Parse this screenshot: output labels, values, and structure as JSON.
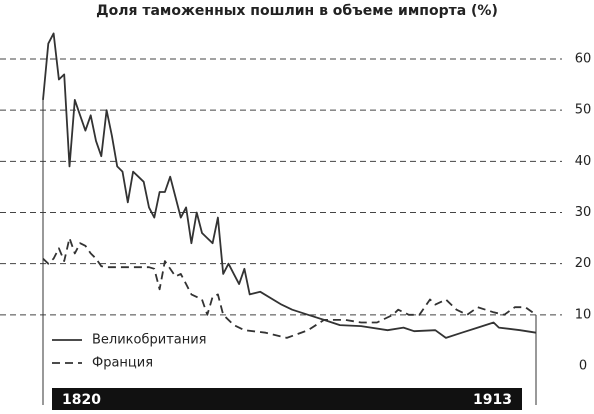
{
  "chart_data": {
    "type": "line",
    "title": "Доля таможенных пошлин в объеме импорта (%)",
    "xlim": [
      1820,
      1913
    ],
    "xticks": [
      1820,
      1913
    ],
    "ylim": [
      0,
      60
    ],
    "yticks": [
      0,
      10,
      20,
      30,
      40,
      50,
      60
    ],
    "grid": true,
    "legend": "lower left",
    "series": [
      {
        "name": "Великобритания",
        "color": "#333333",
        "dash": "solid",
        "x": [
          1820,
          1821,
          1822,
          1823,
          1824,
          1825,
          1826,
          1827,
          1828,
          1829,
          1830,
          1831,
          1832,
          1833,
          1834,
          1835,
          1836,
          1837,
          1838,
          1839,
          1840,
          1841,
          1842,
          1843,
          1844,
          1845,
          1846,
          1847,
          1848,
          1849,
          1850,
          1851,
          1852,
          1853,
          1854,
          1855,
          1856,
          1857,
          1858,
          1859,
          1861,
          1865,
          1867,
          1870,
          1873,
          1876,
          1880,
          1885,
          1888,
          1890,
          1894,
          1896,
          1899,
          1902,
          1905,
          1906,
          1910,
          1913
        ],
        "values": [
          52,
          63,
          65,
          56,
          57,
          39,
          52,
          49,
          46,
          49,
          44,
          41,
          50,
          45,
          39,
          38,
          32,
          38,
          37,
          36,
          31,
          29,
          34,
          34,
          37,
          33,
          29,
          31,
          24,
          30,
          26,
          25,
          24,
          29,
          18,
          20,
          18,
          16,
          19,
          14,
          14.5,
          12,
          11,
          10,
          9,
          8,
          7.8,
          7,
          7.5,
          6.8,
          7,
          5.5,
          6.5,
          7.5,
          8.5,
          7.5,
          7,
          6.5
        ]
      },
      {
        "name": "Франция",
        "color": "#333333",
        "dash": "dashed",
        "x": [
          1820,
          1821,
          1822,
          1823,
          1824,
          1825,
          1826,
          1827,
          1828,
          1829,
          1830,
          1831,
          1832,
          1840,
          1841,
          1842,
          1843,
          1844,
          1845,
          1846,
          1847,
          1848,
          1849,
          1850,
          1851,
          1852,
          1853,
          1854,
          1856,
          1858,
          1862,
          1866,
          1870,
          1873,
          1877,
          1880,
          1883,
          1886,
          1887,
          1889,
          1891,
          1893,
          1894,
          1896,
          1898,
          1900,
          1902,
          1905,
          1907,
          1909,
          1911,
          1913
        ],
        "values": [
          21,
          20,
          21,
          23,
          20.5,
          25,
          22,
          24,
          23.5,
          22,
          21,
          19.5,
          19.3,
          19.3,
          19,
          15,
          20.5,
          19,
          17.5,
          18,
          16,
          14,
          13.5,
          13,
          10,
          13.5,
          14,
          10,
          8,
          7,
          6.5,
          5.5,
          7,
          9,
          9,
          8.5,
          8.5,
          10,
          11,
          10,
          10,
          13,
          12,
          13,
          11,
          10,
          11.5,
          10.5,
          10,
          11.5,
          11.5,
          10
        ]
      }
    ]
  }
}
